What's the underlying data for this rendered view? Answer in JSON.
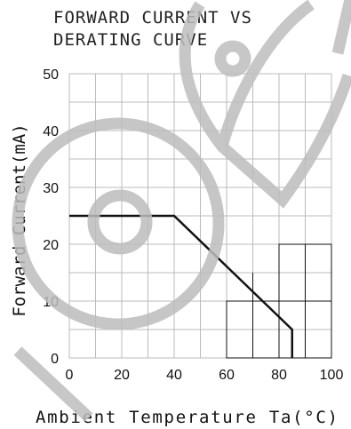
{
  "chart_data": {
    "type": "line",
    "title_lines": [
      "FORWARD CURRENT VS",
      "DERATING CURVE"
    ],
    "xlabel": "Ambient  Temperature  Ta(°C)",
    "ylabel": "Forward  Current(mA)",
    "xlim": [
      0,
      100
    ],
    "ylim": [
      0,
      50
    ],
    "x_ticks": [
      "0",
      "20",
      "40",
      "60",
      "80",
      "100"
    ],
    "y_ticks": [
      "0",
      "10",
      "20",
      "30",
      "40",
      "50"
    ],
    "grid": true,
    "series": [
      {
        "x": [
          0,
          40,
          85,
          85
        ],
        "y": [
          25,
          25,
          5,
          0
        ]
      }
    ]
  },
  "colors": {
    "grid": "#bbbbbb",
    "grid_box": "#111111",
    "line": "#111111",
    "watermark": "#bdbdbd"
  }
}
